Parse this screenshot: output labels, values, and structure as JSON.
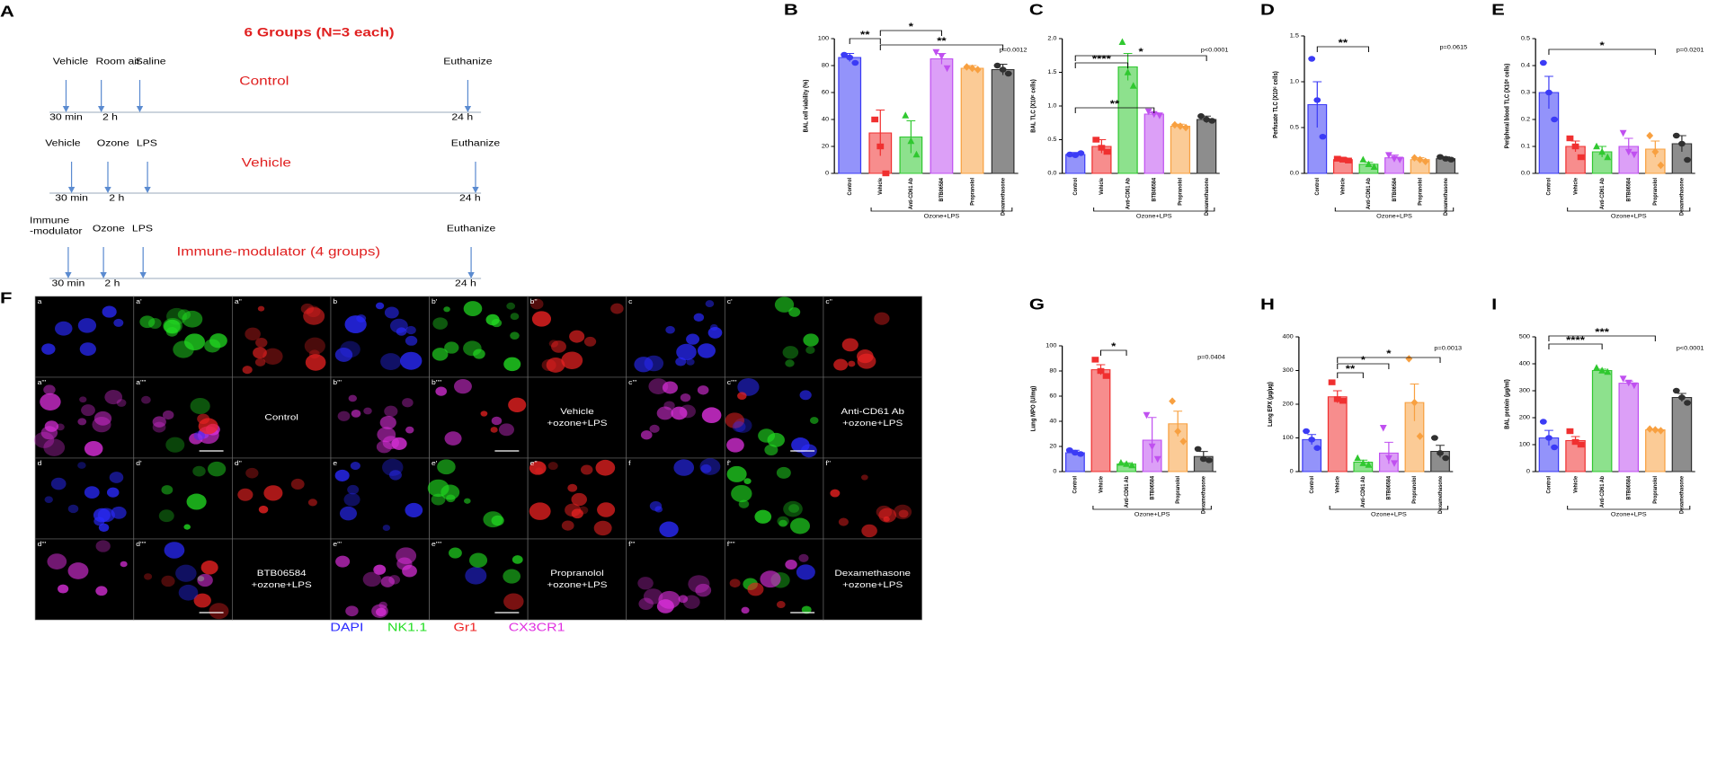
{
  "panel_a": {
    "label": "A",
    "title": "6 Groups (N=3 each)",
    "timelines": [
      {
        "name": "Control",
        "events": [
          [
            "Vehicle"
          ],
          [
            "Room air"
          ],
          [
            "Saline"
          ]
        ],
        "end": "Euthanize",
        "times": [
          "30 min",
          "2 h",
          "24 h"
        ]
      },
      {
        "name": "Vehicle",
        "events": [
          [
            "Vehicle"
          ],
          [
            "Ozone"
          ],
          [
            "LPS"
          ]
        ],
        "end": "Euthanize",
        "times": [
          "30 min",
          "2 h",
          "24 h"
        ]
      },
      {
        "name": "Immune-modulator (4 groups)",
        "events": [
          [
            "Immune",
            "-modulator"
          ],
          [
            "Ozone"
          ],
          [
            "LPS"
          ]
        ],
        "end": "Euthanize",
        "times": [
          "30 min",
          "2 h",
          "24 h"
        ]
      }
    ]
  },
  "chart_data": [
    {
      "type": "bar",
      "label": "B",
      "ylabel": "BAL cell viability (%)",
      "categories": [
        "Control",
        "Vehicle",
        "Anti-CD61 Ab",
        "BTB06584",
        "Propranolol",
        "Dexamethasone"
      ],
      "colors": [
        "#3b3bf5",
        "#f03030",
        "#30c830",
        "#c050f0",
        "#f8a040",
        "#303030"
      ],
      "values": [
        86,
        30,
        27,
        85,
        78,
        77
      ],
      "errors": [
        3,
        17,
        12,
        4,
        2,
        4
      ],
      "points": [
        [
          88,
          86,
          82
        ],
        [
          40,
          20,
          0
        ],
        [
          43,
          24,
          14
        ],
        [
          90,
          87,
          78
        ],
        [
          79,
          78,
          77
        ],
        [
          80,
          77,
          74
        ]
      ],
      "ylim": [
        0,
        100
      ],
      "yticks": [
        0,
        20,
        40,
        60,
        80,
        100
      ],
      "p_value": "p=0.0012",
      "significance": [
        "**",
        "*",
        "**"
      ],
      "group_label": "Ozone+LPS"
    },
    {
      "type": "bar",
      "label": "C",
      "ylabel": "BAL TLC (X10⁶ cells)",
      "categories": [
        "Control",
        "Vehicle",
        "Anti-CD61 Ab",
        "BTB06584",
        "Propranolol",
        "Dexamethasone"
      ],
      "colors": [
        "#3b3bf5",
        "#f03030",
        "#30c830",
        "#c050f0",
        "#f8a040",
        "#303030"
      ],
      "values": [
        0.28,
        0.4,
        1.58,
        0.88,
        0.7,
        0.8
      ],
      "errors": [
        0.03,
        0.1,
        0.2,
        0.02,
        0.03,
        0.05
      ],
      "points": [
        [
          0.28,
          0.27,
          0.3
        ],
        [
          0.5,
          0.38,
          0.32
        ],
        [
          1.95,
          1.5,
          1.3
        ],
        [
          0.92,
          0.88,
          0.86
        ],
        [
          0.72,
          0.7,
          0.68
        ],
        [
          0.85,
          0.8,
          0.78
        ]
      ],
      "ylim": [
        0,
        2
      ],
      "yticks": [
        {
          "value": 0,
          "label": "0.0"
        },
        0.5,
        {
          "value": 1,
          "label": "1.0"
        },
        1.5,
        {
          "value": 2,
          "label": "2.0"
        }
      ],
      "p_value": "p<0.0001",
      "significance": [
        "****",
        "*",
        "**"
      ],
      "group_label": "Ozone+LPS"
    },
    {
      "type": "bar",
      "label": "D",
      "ylabel": "Perfusate TLC (X10⁶ cells)",
      "categories": [
        "Control",
        "Vehicle",
        "Anti-CD61 Ab",
        "BTB06584",
        "Propranolol",
        "Dexamethasone"
      ],
      "colors": [
        "#3b3bf5",
        "#f03030",
        "#30c830",
        "#c050f0",
        "#f8a040",
        "#303030"
      ],
      "values": [
        0.75,
        0.15,
        0.1,
        0.17,
        0.15,
        0.16
      ],
      "errors": [
        0.25,
        0.02,
        0.02,
        0.03,
        0.02,
        0.02
      ],
      "points": [
        [
          1.25,
          0.8,
          0.4
        ],
        [
          0.16,
          0.15,
          0.14
        ],
        [
          0.15,
          0.1,
          0.07
        ],
        [
          0.2,
          0.16,
          0.15
        ],
        [
          0.17,
          0.15,
          0.13
        ],
        [
          0.18,
          0.16,
          0.15
        ]
      ],
      "ylim": [
        0,
        1.5
      ],
      "yticks": [
        {
          "value": 0,
          "label": "0.0"
        },
        0.5,
        {
          "value": 1,
          "label": "1.0"
        },
        1.5
      ],
      "p_value": "p=0.0615",
      "significance": [
        "**"
      ],
      "group_label": "Ozone+LPS"
    },
    {
      "type": "bar",
      "label": "E",
      "ylabel": "Peripheral blood TLC (X10⁶ cells)",
      "categories": [
        "Control",
        "Vehicle",
        "Anti-CD61 Ab",
        "BTB06584",
        "Propranolol",
        "Dexamethasone"
      ],
      "colors": [
        "#3b3bf5",
        "#f03030",
        "#30c830",
        "#c050f0",
        "#f8a040",
        "#303030"
      ],
      "values": [
        0.3,
        0.1,
        0.08,
        0.1,
        0.09,
        0.11
      ],
      "errors": [
        0.06,
        0.02,
        0.02,
        0.03,
        0.03,
        0.03
      ],
      "points": [
        [
          0.41,
          0.3,
          0.2
        ],
        [
          0.13,
          0.1,
          0.06
        ],
        [
          0.1,
          0.08,
          0.06
        ],
        [
          0.15,
          0.08,
          0.07
        ],
        [
          0.14,
          0.08,
          0.03
        ],
        [
          0.14,
          0.11,
          0.05
        ]
      ],
      "ylim": [
        0,
        0.5
      ],
      "yticks": [
        {
          "value": 0,
          "label": "0.0"
        },
        0.1,
        0.2,
        0.3,
        0.4,
        0.5
      ],
      "p_value": "p=0.0201",
      "significance": [
        "*"
      ],
      "group_label": "Ozone+LPS"
    },
    {
      "type": "bar",
      "label": "G",
      "ylabel": "Lung MPO (U/mg)",
      "categories": [
        "Control",
        "Vehicle",
        "Anti-CD61 Ab",
        "BTB06584",
        "Propranolol",
        "Dexamethasone"
      ],
      "colors": [
        "#3b3bf5",
        "#f03030",
        "#30c830",
        "#c050f0",
        "#f8a040",
        "#303030"
      ],
      "values": [
        15,
        81,
        6,
        25,
        38,
        12
      ],
      "errors": [
        2,
        4,
        1,
        18,
        10,
        4
      ],
      "points": [
        [
          17,
          15,
          14
        ],
        [
          89,
          80,
          76
        ],
        [
          7,
          6,
          5
        ],
        [
          45,
          20,
          10
        ],
        [
          56,
          32,
          24
        ],
        [
          18,
          10,
          9
        ]
      ],
      "ylim": [
        0,
        100
      ],
      "yticks": [
        0,
        20,
        40,
        60,
        80,
        100
      ],
      "p_value": "p=0.0404",
      "significance": [
        "*"
      ],
      "group_label": "Ozone+LPS"
    },
    {
      "type": "bar",
      "label": "H",
      "ylabel": "Lung EPX (µg/µg)",
      "categories": [
        "Control",
        "Vehicle",
        "Anti-CD61 Ab",
        "BTB06584",
        "Propranolol",
        "Dexamethasone"
      ],
      "colors": [
        "#3b3bf5",
        "#f03030",
        "#30c830",
        "#c050f0",
        "#f8a040",
        "#303030"
      ],
      "values": [
        95,
        222,
        28,
        55,
        205,
        60
      ],
      "errors": [
        15,
        18,
        6,
        32,
        55,
        18
      ],
      "points": [
        [
          120,
          95,
          70
        ],
        [
          265,
          215,
          210
        ],
        [
          40,
          25,
          20
        ],
        [
          130,
          40,
          25
        ],
        [
          335,
          205,
          105
        ],
        [
          100,
          55,
          40
        ]
      ],
      "ylim": [
        0,
        400
      ],
      "yticks": [
        0,
        100,
        200,
        300,
        400
      ],
      "p_value": "p=0.0013",
      "significance": [
        "**",
        "*",
        "*"
      ],
      "group_label": "Ozone+LPS"
    },
    {
      "type": "bar",
      "label": "I",
      "ylabel": "BAL protein (µg/ml)",
      "categories": [
        "Control",
        "Vehicle",
        "Anti-CD61 Ab",
        "BTB06584",
        "Propranolol",
        "Dexamethasone"
      ],
      "colors": [
        "#3b3bf5",
        "#f03030",
        "#30c830",
        "#c050f0",
        "#f8a040",
        "#303030"
      ],
      "values": [
        125,
        115,
        375,
        328,
        155,
        275
      ],
      "errors": [
        28,
        15,
        5,
        8,
        2,
        15
      ],
      "points": [
        [
          185,
          125,
          90
        ],
        [
          150,
          110,
          100
        ],
        [
          385,
          375,
          370
        ],
        [
          345,
          330,
          320
        ],
        [
          158,
          155,
          152
        ],
        [
          300,
          275,
          255
        ]
      ],
      "ylim": [
        0,
        500
      ],
      "yticks": [
        0,
        100,
        200,
        300,
        400,
        500
      ],
      "p_value": "p<0.0001",
      "significance": [
        "****",
        "***"
      ],
      "group_label": "Ozone+LPS"
    }
  ],
  "panel_f": {
    "label": "F",
    "rows": [
      [
        "a",
        "a'",
        "a''",
        "b",
        "b'",
        "b''",
        "c",
        "c'",
        "c''"
      ],
      [
        "a'''",
        "a''''",
        [
          "Control"
        ],
        "b'''",
        "b''''",
        [
          "Vehicle",
          "+ozone+LPS"
        ],
        "c'''",
        "c''''",
        [
          "Anti-CD61 Ab",
          "+ozone+LPS"
        ]
      ],
      [
        "d",
        "d'",
        "d''",
        "e",
        "e'",
        "e''",
        "f",
        "f'",
        "f''"
      ],
      [
        "d'''",
        "d''''",
        [
          "BTB06584",
          "+ozone+LPS"
        ],
        "e'''",
        "e''''",
        [
          "Propranolol",
          "+ozone+LPS"
        ],
        "f'''",
        "f''''",
        [
          "Dexamethasone",
          "+ozone+LPS"
        ]
      ]
    ],
    "legend": [
      {
        "name": "DAPI",
        "color": "#2a2aff"
      },
      {
        "name": "NK1.1",
        "color": "#22dd22"
      },
      {
        "name": "Gr1",
        "color": "#ee2222"
      },
      {
        "name": "CX3CR1",
        "color": "#e030e0"
      }
    ]
  }
}
